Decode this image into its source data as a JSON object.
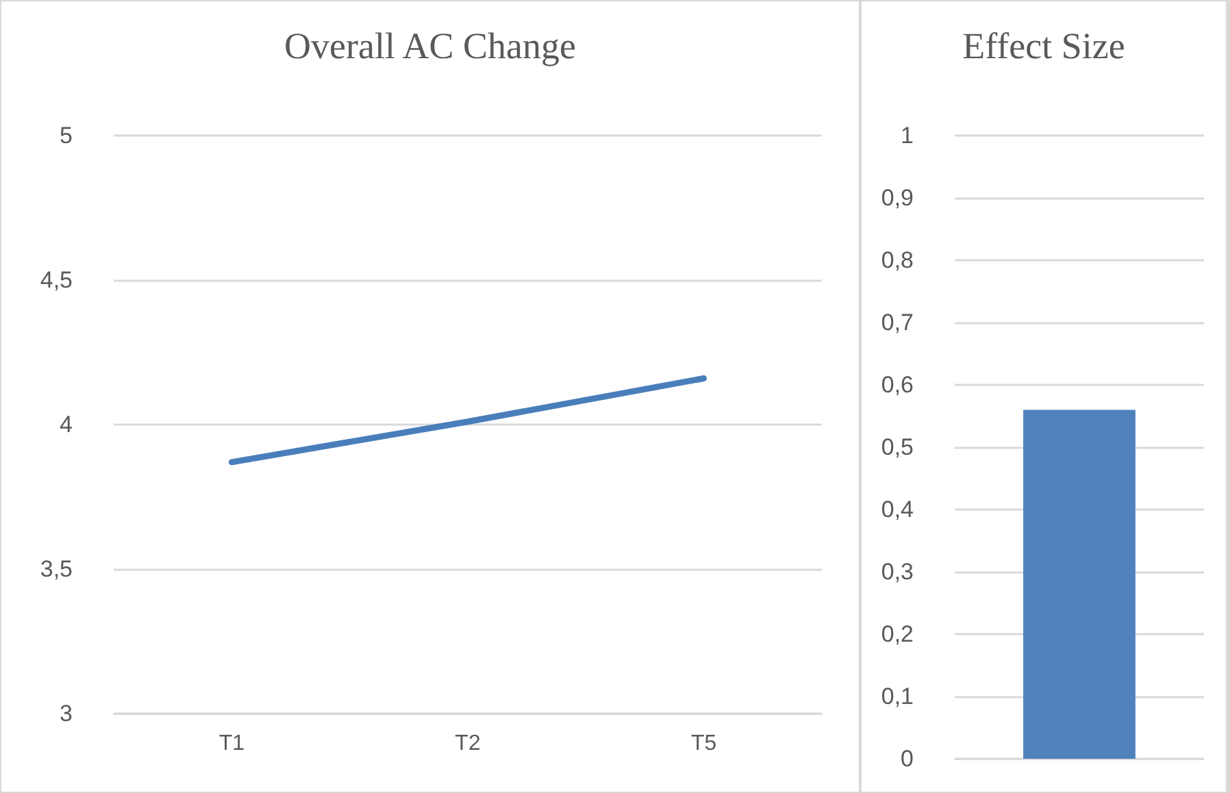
{
  "chart_data": [
    {
      "type": "line",
      "title": "Overall AC Change",
      "categories": [
        "T1",
        "T2",
        "T5"
      ],
      "series": [
        {
          "color": "#4a7ebb",
          "values": [
            3.87,
            4.01,
            4.16
          ]
        }
      ],
      "ylim": [
        3,
        5
      ],
      "yticks": [
        3,
        {
          "value": 3.5,
          "label": "3,5"
        },
        4,
        {
          "value": 4.5,
          "label": "4,5"
        },
        5
      ],
      "grid": "y",
      "marker": "none"
    },
    {
      "type": "bar",
      "title": "Effect Size",
      "categories": [
        null
      ],
      "series": [
        {
          "color": "#4f81bd",
          "values": [
            0.56
          ]
        }
      ],
      "ylim": [
        0,
        1
      ],
      "yticks": [
        0,
        {
          "value": 0.1,
          "label": "0,1"
        },
        {
          "value": 0.2,
          "label": "0,2"
        },
        {
          "value": 0.3,
          "label": "0,3"
        },
        {
          "value": 0.4,
          "label": "0,4"
        },
        {
          "value": 0.5,
          "label": "0,5"
        },
        {
          "value": 0.6,
          "label": "0,6"
        },
        {
          "value": 0.7,
          "label": "0,7"
        },
        {
          "value": 0.8,
          "label": "0,8"
        },
        {
          "value": 0.9,
          "label": "0,9"
        },
        1
      ],
      "grid": "y"
    }
  ]
}
